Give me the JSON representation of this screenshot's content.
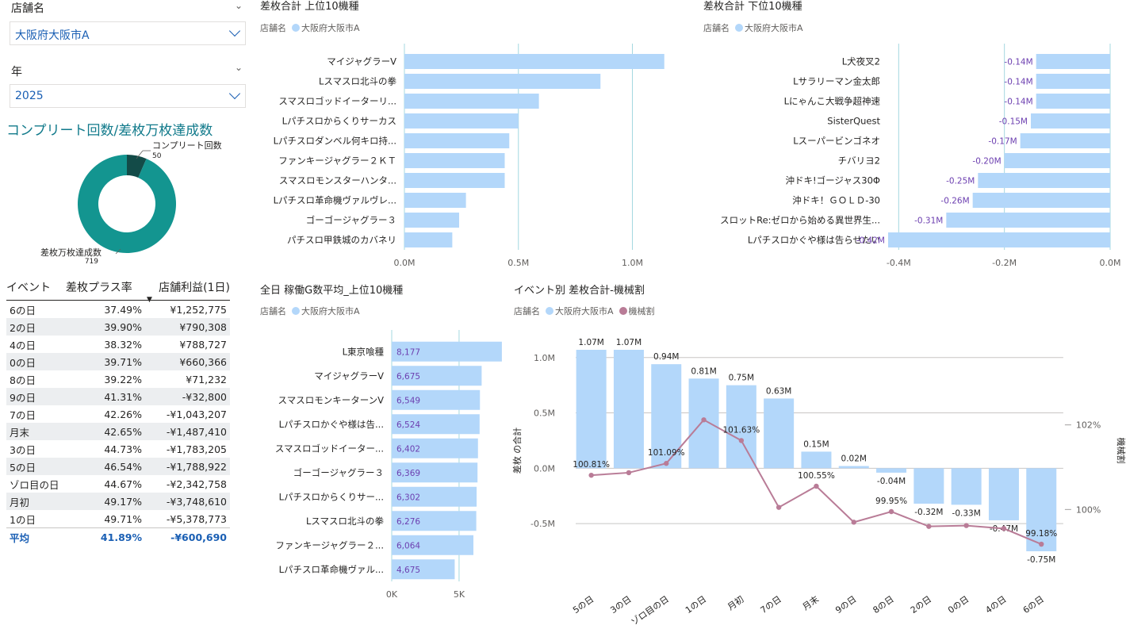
{
  "slicers": {
    "store": {
      "title": "店舗名",
      "value": "大阪府大阪市A"
    },
    "year": {
      "title": "年",
      "value": "2025"
    }
  },
  "colors": {
    "bar": "#b3d7fa",
    "line": "#b97c97",
    "accent": "#1a5fb4",
    "donut_main": "#139590",
    "donut_dark": "#134b48",
    "purple_label": "#6c3fb0"
  },
  "legend": {
    "store_label": "店舗名",
    "store_value": "大阪府大阪市A",
    "machine_label": "機械割"
  },
  "donut": {
    "title": "コンプリート回数/差枚万枚達成数",
    "segments": [
      {
        "name": "コンプリート回数",
        "value": 50
      },
      {
        "name": "差枚万枚達成数",
        "value": 719
      }
    ]
  },
  "table": {
    "headers": [
      "イベント",
      "差枚プラス率",
      "店舗利益(1日)"
    ],
    "rows": [
      [
        "6の日",
        "37.49%",
        "¥1,252,775"
      ],
      [
        "2の日",
        "39.90%",
        "¥790,308"
      ],
      [
        "4の日",
        "38.32%",
        "¥788,727"
      ],
      [
        "0の日",
        "39.71%",
        "¥660,366"
      ],
      [
        "8の日",
        "39.22%",
        "¥71,232"
      ],
      [
        "9の日",
        "41.31%",
        "-¥32,800"
      ],
      [
        "7の日",
        "42.26%",
        "-¥1,043,207"
      ],
      [
        "月末",
        "42.65%",
        "-¥1,487,410"
      ],
      [
        "3の日",
        "44.73%",
        "-¥1,783,205"
      ],
      [
        "5の日",
        "46.54%",
        "-¥1,788,922"
      ],
      [
        "ゾロ目の日",
        "44.67%",
        "-¥2,342,758"
      ],
      [
        "月初",
        "49.17%",
        "-¥3,748,610"
      ],
      [
        "1の日",
        "49.71%",
        "-¥5,378,773"
      ]
    ],
    "total": [
      "平均",
      "41.89%",
      "-¥600,690"
    ]
  },
  "chart_data": [
    {
      "type": "bar",
      "title": "差枚合計 上位10機種",
      "categories": [
        "マイジャグラーV",
        "Lスマスロ北斗の拳",
        "スマスロゴッドイーターリ...",
        "Lパチスロからくりサーカス",
        "Lパチスロダンベル何キロ持...",
        "ファンキージャグラー２ＫＴ",
        "スマスロモンスターハンタ...",
        "Lパチスロ革命機ヴァルヴレ...",
        "ゴーゴージャグラー３",
        "パチスロ甲鉄城のカバネリ"
      ],
      "values": [
        1.14,
        0.86,
        0.59,
        0.5,
        0.46,
        0.44,
        0.44,
        0.27,
        0.24,
        0.21
      ],
      "xlim": [
        0,
        1.2
      ],
      "ticks": [
        "0.0M",
        "0.5M",
        "1.0M"
      ]
    },
    {
      "type": "bar",
      "title": "差枚合計 下位10機種",
      "categories": [
        "L犬夜叉2",
        "Lサラリーマン金太郎",
        "Lにゃんこ大戦争超神速",
        "SisterQuest",
        "Lスーパービンゴネオ",
        "チバリヨ2",
        "沖ドキ!ゴージャス30Φ",
        "沖ドキ！ＧＯＬＤ-30",
        "スロットRe:ゼロから始める異世界生...",
        "Lパチスロかぐや様は告らせたい"
      ],
      "values": [
        -0.14,
        -0.14,
        -0.14,
        -0.15,
        -0.17,
        -0.2,
        -0.25,
        -0.26,
        -0.31,
        -0.42
      ],
      "labels": [
        "-0.14M",
        "-0.14M",
        "-0.14M",
        "-0.15M",
        "-0.17M",
        "-0.20M",
        "-0.25M",
        "-0.26M",
        "-0.31M",
        "-0.42M"
      ],
      "xlim": [
        -0.42,
        0
      ],
      "ticks": [
        "-0.4M",
        "-0.2M",
        "0.0M"
      ]
    },
    {
      "type": "bar",
      "title": "全日 稼働G数平均_上位10機種",
      "categories": [
        "L東京喰種",
        "マイジャグラーV",
        "スマスロモンキーターンV",
        "Lパチスロかぐや様は告...",
        "スマスロゴッドイーター...",
        "ゴーゴージャグラー３",
        "Lパチスロからくりサー...",
        "Lスマスロ北斗の拳",
        "ファンキージャグラー２...",
        "Lパチスロ革命機ヴァル..."
      ],
      "values": [
        8177,
        6675,
        6549,
        6524,
        6402,
        6369,
        6302,
        6276,
        6064,
        4675
      ],
      "labels": [
        "8,177",
        "6,675",
        "6,549",
        "6,524",
        "6,402",
        "6,369",
        "6,302",
        "6,276",
        "6,064",
        "4,675"
      ],
      "xlim": [
        0,
        8300
      ],
      "ticks": [
        "0K",
        "5K"
      ]
    },
    {
      "type": "bar",
      "title": "イベント別 差枚合計-機械割",
      "categories": [
        "5の日",
        "3の日",
        "ゾロ目の日",
        "1の日",
        "月初",
        "7の日",
        "月末",
        "9の日",
        "8の日",
        "2の日",
        "0の日",
        "4の日",
        "6の日"
      ],
      "series": [
        {
          "name": "大阪府大阪市A",
          "values": [
            1.07,
            1.07,
            0.94,
            0.81,
            0.75,
            0.63,
            0.15,
            0.02,
            -0.04,
            -0.32,
            -0.33,
            -0.47,
            -0.75
          ],
          "labels": [
            "1.07M",
            "1.07M",
            "0.94M",
            "0.81M",
            "0.75M",
            "0.63M",
            "0.15M",
            "0.02M",
            "-0.04M",
            "-0.32M",
            "-0.33M",
            "-0.47M",
            "-0.75M"
          ]
        },
        {
          "name": "機械割",
          "type": "line",
          "values": [
            100.81,
            100.87,
            101.09,
            102.12,
            101.63,
            100.05,
            100.55,
            99.7,
            99.95,
            99.6,
            99.62,
            99.55,
            99.18
          ],
          "labels": [
            "100.81%",
            "",
            "101.09%",
            "",
            "101.63%",
            "",
            "100.55%",
            "",
            "99.95%",
            "",
            "",
            "",
            "99.18%"
          ]
        }
      ],
      "ylabel": "差枚 の合計",
      "y2label": "機械割",
      "ylim": [
        -0.75,
        1.07
      ],
      "y_ticks": [
        "1.0M",
        "0.5M",
        "0.0M",
        "-0.5M"
      ],
      "y2_ticks": [
        "102%",
        "100%"
      ]
    }
  ]
}
